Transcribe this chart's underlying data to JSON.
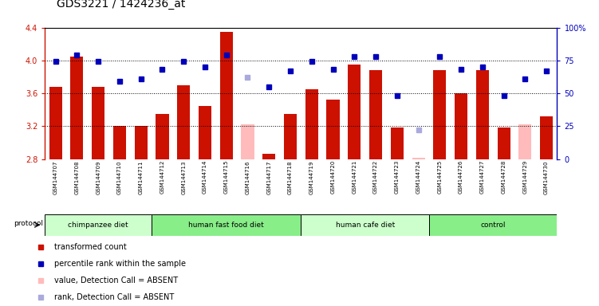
{
  "title": "GDS3221 / 1424236_at",
  "samples": [
    "GSM144707",
    "GSM144708",
    "GSM144709",
    "GSM144710",
    "GSM144711",
    "GSM144712",
    "GSM144713",
    "GSM144714",
    "GSM144715",
    "GSM144716",
    "GSM144717",
    "GSM144718",
    "GSM144719",
    "GSM144720",
    "GSM144721",
    "GSM144722",
    "GSM144723",
    "GSM144724",
    "GSM144725",
    "GSM144726",
    "GSM144727",
    "GSM144728",
    "GSM144729",
    "GSM144730"
  ],
  "bar_values": [
    3.68,
    4.05,
    3.68,
    3.2,
    3.2,
    3.35,
    3.7,
    3.45,
    4.35,
    3.22,
    2.86,
    3.35,
    3.65,
    3.52,
    3.95,
    3.88,
    3.18,
    2.82,
    3.88,
    3.6,
    3.88,
    3.18,
    3.22,
    3.32
  ],
  "bar_absent": [
    false,
    false,
    false,
    false,
    false,
    false,
    false,
    false,
    false,
    true,
    false,
    false,
    false,
    false,
    false,
    false,
    false,
    true,
    false,
    false,
    false,
    false,
    true,
    false
  ],
  "dot_values": [
    74,
    79,
    74,
    59,
    61,
    68,
    74,
    70,
    79,
    62,
    55,
    67,
    74,
    68,
    78,
    78,
    48,
    22,
    78,
    68,
    70,
    48,
    61,
    67
  ],
  "dot_absent": [
    false,
    false,
    false,
    false,
    false,
    false,
    false,
    false,
    false,
    true,
    false,
    false,
    false,
    false,
    false,
    false,
    false,
    true,
    false,
    false,
    false,
    false,
    false,
    false
  ],
  "groups": [
    {
      "label": "chimpanzee diet",
      "start": 0,
      "end": 5
    },
    {
      "label": "human fast food diet",
      "start": 5,
      "end": 12
    },
    {
      "label": "human cafe diet",
      "start": 12,
      "end": 18
    },
    {
      "label": "control",
      "start": 18,
      "end": 24
    }
  ],
  "group_colors": [
    "#ccffcc",
    "#88ee88",
    "#ccffcc",
    "#88ee88"
  ],
  "ylim": [
    2.8,
    4.4
  ],
  "yticks": [
    2.8,
    3.2,
    3.6,
    4.0,
    4.4
  ],
  "y2ticks": [
    0,
    25,
    50,
    75,
    100
  ],
  "bar_color": "#cc1100",
  "bar_absent_color": "#ffbbbb",
  "dot_color": "#0000bb",
  "dot_absent_color": "#aaaadd",
  "bg_color": "#cccccc",
  "plot_bg": "#ffffff",
  "title_fontsize": 10,
  "legend_items": [
    {
      "color": "#cc1100",
      "label": "transformed count"
    },
    {
      "color": "#0000bb",
      "label": "percentile rank within the sample"
    },
    {
      "color": "#ffbbbb",
      "label": "value, Detection Call = ABSENT"
    },
    {
      "color": "#aaaadd",
      "label": "rank, Detection Call = ABSENT"
    }
  ]
}
